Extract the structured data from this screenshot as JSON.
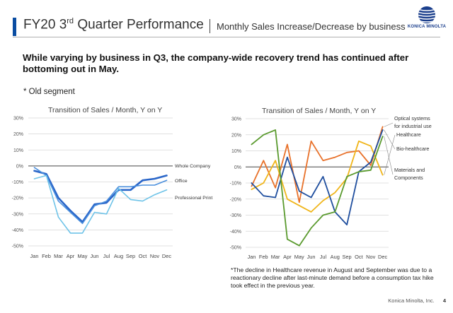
{
  "header": {
    "title_main": "FY20 3",
    "title_sup": "rd",
    "title_rest": " Quarter Performance",
    "subtitle": "Monthly Sales Increase/Decrease by business",
    "logo_text": "KONICA MINOLTA"
  },
  "headline": "While varying by business in Q3, the company-wide recovery trend has continued after bottoming out in May.",
  "segment_note": "* Old segment",
  "footnote": "*The decline in Healthcare revenue in August and September was due to a reactionary decline after last-minute demand before a consumption tax hike took effect in the previous year.",
  "footer": {
    "company": "Konica Minolta, Inc.",
    "page": "4"
  },
  "colors": {
    "accent": "#0a4da2",
    "whole": "#2a66c9",
    "office": "#4c90dd",
    "print": "#6ec3e8",
    "optical": "#e8712a",
    "healthcare": "#f0b51a",
    "biohealth": "#1f4e9e",
    "materials": "#5a9a2e"
  },
  "chart_data": [
    {
      "type": "line",
      "title": "Transition of Sales / Month, Y on Y",
      "categories": [
        "Jan",
        "Feb",
        "Mar",
        "Apr",
        "May",
        "Jun",
        "Jul",
        "Aug",
        "Sep",
        "Oct",
        "Nov",
        "Dec"
      ],
      "ylim": [
        -50,
        30
      ],
      "yticks": [
        "30%",
        "20%",
        "10%",
        "0%",
        "-10%",
        "-20%",
        "-30%",
        "-40%",
        "-50%"
      ],
      "grid": true,
      "series": [
        {
          "name": "Whole Company",
          "color": "#2a66c9",
          "width": 2.6,
          "values": [
            -3,
            -5,
            -20,
            -28,
            -35,
            -24,
            -23,
            -15,
            -15,
            -9,
            -8,
            -6
          ]
        },
        {
          "name": "Office",
          "color": "#4c90dd",
          "width": 1.6,
          "values": [
            -1,
            -6,
            -22,
            -29,
            -36,
            -25,
            -22,
            -13,
            -13,
            -12,
            -12,
            -9
          ]
        },
        {
          "name": "Professional Print",
          "color": "#6ec3e8",
          "width": 1.6,
          "values": [
            -8,
            -6,
            -32,
            -42,
            -42,
            -29,
            -30,
            -14,
            -21,
            -22,
            -18,
            -15
          ]
        }
      ]
    },
    {
      "type": "line",
      "title": "Transition of Sales / Month, Y on Y",
      "categories": [
        "Jan",
        "Feb",
        "Mar",
        "Apr",
        "May",
        "Jun",
        "Jul",
        "Aug",
        "Sep",
        "Oct",
        "Nov",
        "Dec"
      ],
      "ylim": [
        -50,
        30
      ],
      "yticks": [
        "30%",
        "20%",
        "10%",
        "0%",
        "-10%",
        "-20%",
        "-30%",
        "-40%",
        "-50%"
      ],
      "grid": true,
      "series": [
        {
          "name": "Optical systems for industrial use",
          "color": "#e8712a",
          "width": 1.8,
          "values": [
            -12,
            4,
            -13,
            14,
            -22,
            16,
            4,
            6,
            9,
            10,
            1,
            25
          ]
        },
        {
          "name": "Healthcare",
          "color": "#f0b51a",
          "width": 1.8,
          "values": [
            -14,
            -10,
            4,
            -20,
            -24,
            -28,
            -21,
            -16,
            -7,
            16,
            13,
            -5
          ]
        },
        {
          "name": "Bio-healthcare",
          "color": "#1f4e9e",
          "width": 1.8,
          "values": [
            -10,
            -18,
            -19,
            6,
            -15,
            -19,
            -6,
            -28,
            -36,
            -3,
            3,
            23
          ]
        },
        {
          "name": "Materials and Components",
          "color": "#5a9a2e",
          "width": 1.8,
          "values": [
            14,
            20,
            23,
            -45,
            -49,
            -38,
            -30,
            -28,
            -6,
            -3,
            -2,
            19
          ]
        }
      ]
    }
  ]
}
